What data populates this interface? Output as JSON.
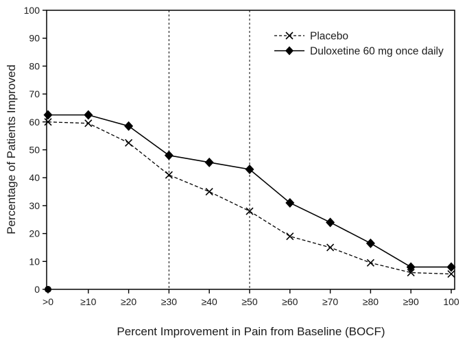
{
  "chart_data": {
    "type": "line",
    "title": "",
    "xlabel": "Percent Improvement in Pain from Baseline (BOCF)",
    "ylabel": "Percentage of Patients Improved",
    "categories": [
      ">0",
      "≥10",
      "≥20",
      "≥30",
      "≥40",
      "≥50",
      "≥60",
      "≥70",
      "≥80",
      "≥90",
      "100"
    ],
    "ylim": [
      0,
      100
    ],
    "yticks": [
      0,
      10,
      20,
      30,
      40,
      50,
      60,
      70,
      80,
      90,
      100
    ],
    "grid": false,
    "plot_border": "box",
    "legend_position": "top-right-inside",
    "series": [
      {
        "name": "Placebo",
        "line_style": "dashed",
        "marker": "x",
        "color": "#000000",
        "values": [
          60,
          59.5,
          52.5,
          41,
          35,
          28,
          19,
          15,
          9.5,
          6,
          5.5
        ]
      },
      {
        "name": "Duloxetine 60 mg once daily",
        "line_style": "solid",
        "marker": "diamond",
        "color": "#000000",
        "values": [
          62.5,
          62.5,
          58.5,
          48,
          45.5,
          43,
          31,
          24,
          16.5,
          8,
          8
        ]
      }
    ],
    "reference_lines": [
      {
        "axis": "x",
        "category_index": 3,
        "at_label": "≥30",
        "style": "dashed"
      },
      {
        "axis": "x",
        "category_index": 5,
        "at_label": "≥50",
        "style": "dashed"
      }
    ],
    "annotations": [
      {
        "type": "marker",
        "shape": "filled-circle",
        "category_index": 0,
        "value": 0,
        "name": "origin-point-marker"
      }
    ],
    "colors": {
      "axis": "#000000",
      "text": "#1a1a1a",
      "background": "#ffffff"
    }
  }
}
